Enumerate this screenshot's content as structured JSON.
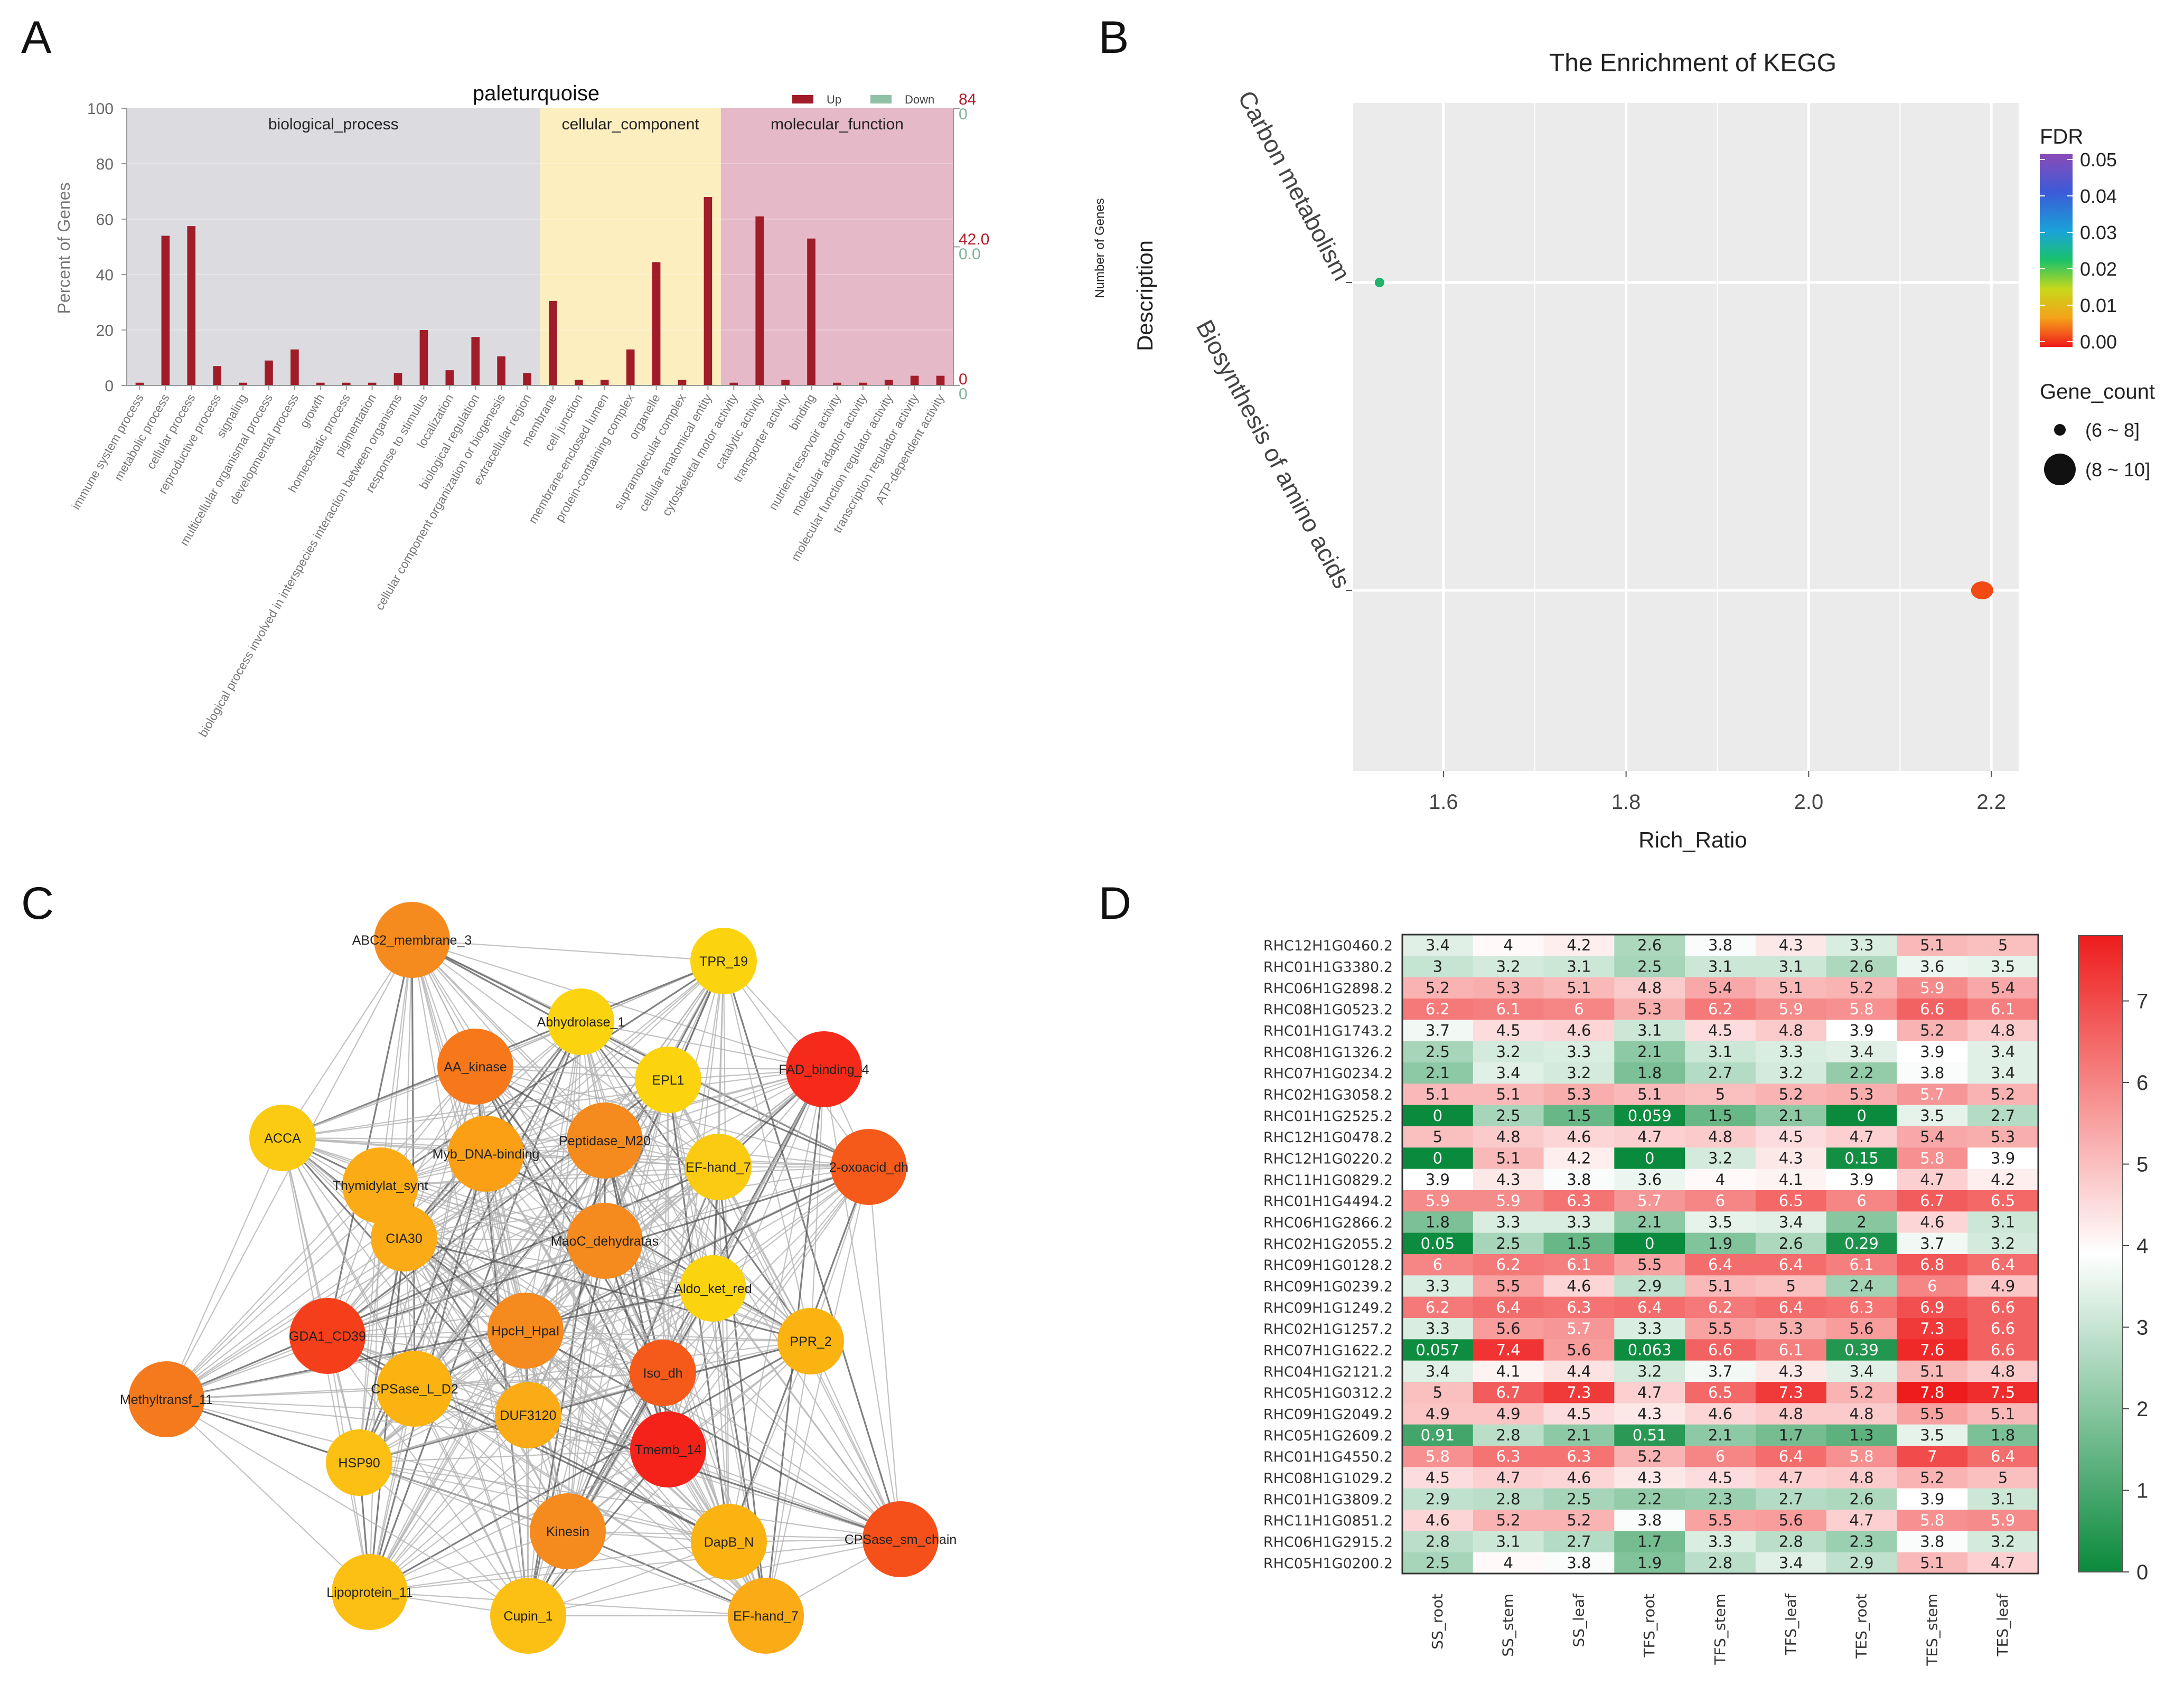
{
  "panels": {
    "a": "A",
    "b": "B",
    "c": "C",
    "d": "D"
  },
  "chart_data": [
    {
      "type": "bar",
      "id": "A",
      "title": "paleturquoise",
      "ylabel": "Percent of Genes",
      "ylim": [
        0,
        100
      ],
      "yticks": [
        "0",
        "20",
        "40",
        "60",
        "80",
        "100"
      ],
      "right_axis": {
        "up": [
          "84",
          "42.0",
          "0"
        ],
        "down": [
          "0",
          "0.0",
          "0"
        ]
      },
      "legend": [
        {
          "name": "Up",
          "color": "#a01c28"
        },
        {
          "name": "Down",
          "color": "#8fbfa5"
        }
      ],
      "groups": [
        {
          "name": "biological_process",
          "start": 0,
          "end": 15,
          "color": "#dcdce0"
        },
        {
          "name": "cellular_component",
          "start": 16,
          "end": 22,
          "color": "#fdeec0"
        },
        {
          "name": "molecular_function",
          "start": 23,
          "end": 31,
          "color": "#e6b9c8"
        }
      ],
      "categories": [
        "immune system process",
        "metabolic process",
        "cellular process",
        "reproductive process",
        "signaling",
        "multicellular organismal process",
        "developmental process",
        "growth",
        "homeostatic process",
        "pigmentation",
        "biological process involved in interspecies interaction between organisms",
        "response to stimulus",
        "localization",
        "biological regulation",
        "cellular component organization or biogenesis",
        "extracellular region",
        "membrane",
        "cell junction",
        "membrane-enclosed lumen",
        "protein-containing complex",
        "organelle",
        "supramolecular complex",
        "cellular anatomical entity",
        "cytoskeletal motor activity",
        "catalytic activity",
        "transporter activity",
        "binding",
        "nutrient reservoir activity",
        "molecular adaptor activity",
        "molecular function regulator activity",
        "transcription regulator activity",
        "ATP-dependent activity"
      ],
      "series": [
        {
          "name": "Up",
          "values": [
            1,
            54,
            57.5,
            7,
            1,
            9,
            13,
            1,
            1,
            1,
            4.5,
            20,
            5.5,
            17.5,
            10.5,
            4.5,
            30.5,
            2,
            2,
            13,
            44.5,
            2,
            68,
            1,
            61,
            2,
            53,
            1,
            1,
            2,
            3.5,
            3.5
          ]
        },
        {
          "name": "Down",
          "values": [
            0,
            0,
            0,
            0,
            0,
            0,
            0,
            0,
            0,
            0,
            0,
            0,
            0,
            0,
            0,
            0,
            0,
            0,
            0,
            0,
            0,
            0,
            0,
            0,
            0,
            0,
            0,
            0,
            0,
            0,
            0,
            0
          ]
        }
      ]
    },
    {
      "type": "scatter",
      "id": "B",
      "title": "The Enrichment of KEGG",
      "xlabel": "Rich_Ratio",
      "ylabel": "Description",
      "ylabel2": "Number of Genes",
      "xlim": [
        1.5,
        2.23
      ],
      "xticks": [
        "1.6",
        "1.8",
        "2.0",
        "2.2"
      ],
      "points": [
        {
          "label": "Carbon metabolism",
          "x": 1.53,
          "fdr": 0.025,
          "color": "#1fb36b",
          "size": "(6 ~ 8]"
        },
        {
          "label": "Biosynthesis of amino acids",
          "x": 2.19,
          "fdr": 0.001,
          "color": "#f24a12",
          "size": "(8 ~ 10]"
        }
      ],
      "colorbar": {
        "title": "FDR",
        "ticks": [
          "0.05",
          "0.04",
          "0.03",
          "0.02",
          "0.01",
          "0.00"
        ]
      },
      "size_legend": {
        "title": "Gene_count",
        "items": [
          "(6 ~ 8]",
          "(8 ~ 10]"
        ]
      }
    },
    {
      "type": "network",
      "id": "C",
      "nodes": [
        {
          "name": "ABC2_membrane_3",
          "color": "#f58a1e"
        },
        {
          "name": "TPR_19",
          "color": "#fbd30f"
        },
        {
          "name": "Abhydrolase_1",
          "color": "#fbd30f"
        },
        {
          "name": "AA_kinase",
          "color": "#f6781a"
        },
        {
          "name": "FAD_binding_4",
          "color": "#f52a1a"
        },
        {
          "name": "EPL1",
          "color": "#fbd30f"
        },
        {
          "name": "ACCA",
          "color": "#fbcb13"
        },
        {
          "name": "Myb_DNA-binding",
          "color": "#fb9f15"
        },
        {
          "name": "Peptidase_M20",
          "color": "#f58a1e"
        },
        {
          "name": "EF-hand_7",
          "color": "#fbcb13"
        },
        {
          "name": "2-oxoacid_dh",
          "color": "#f55a1a"
        },
        {
          "name": "Thymidylat_synt",
          "color": "#fbab15"
        },
        {
          "name": "CIA30",
          "color": "#fbab15"
        },
        {
          "name": "MaoC_dehydratas",
          "color": "#f58a1e"
        },
        {
          "name": "Aldo_ket_red",
          "color": "#fbd30f"
        },
        {
          "name": "GDA1_CD39",
          "color": "#f53e1a"
        },
        {
          "name": "HpcH_HpaI",
          "color": "#f58a1e"
        },
        {
          "name": "PPR_2",
          "color": "#fbb312"
        },
        {
          "name": "Iso_dh",
          "color": "#f55a1a"
        },
        {
          "name": "Methyltransf_11",
          "color": "#f57a1e"
        },
        {
          "name": "CPSase_L_D2",
          "color": "#fbb312"
        },
        {
          "name": "DUF3120",
          "color": "#fbab15"
        },
        {
          "name": "HSP90",
          "color": "#fbc013"
        },
        {
          "name": "Tmemb_14",
          "color": "#f5221a"
        },
        {
          "name": "Kinesin",
          "color": "#f58a1e"
        },
        {
          "name": "DapB_N",
          "color": "#fbb312"
        },
        {
          "name": "CPSase_sm_chain",
          "color": "#f5501a"
        },
        {
          "name": "Lipoprotein_11",
          "color": "#fbc013"
        },
        {
          "name": "Cupin_1",
          "color": "#fbc013"
        },
        {
          "name": "EF-hand_7",
          "color": "#fbab15"
        }
      ]
    },
    {
      "type": "heatmap",
      "id": "D",
      "columns": [
        "SS_root",
        "SS_stem",
        "SS_leaf",
        "TFS_root",
        "TFS_stem",
        "TFS_leaf",
        "TES_root",
        "TES_stem",
        "TES_leaf"
      ],
      "rows": [
        "RHC12H1G0460.2",
        "RHC01H1G3380.2",
        "RHC06H1G2898.2",
        "RHC08H1G0523.2",
        "RHC01H1G1743.2",
        "RHC08H1G1326.2",
        "RHC07H1G0234.2",
        "RHC02H1G3058.2",
        "RHC01H1G2525.2",
        "RHC12H1G0478.2",
        "RHC12H1G0220.2",
        "RHC11H1G0829.2",
        "RHC01H1G4494.2",
        "RHC06H1G2866.2",
        "RHC02H1G2055.2",
        "RHC09H1G0128.2",
        "RHC09H1G0239.2",
        "RHC09H1G1249.2",
        "RHC02H1G1257.2",
        "RHC07H1G1622.2",
        "RHC04H1G2121.2",
        "RHC05H1G0312.2",
        "RHC09H1G2049.2",
        "RHC05H1G2609.2",
        "RHC01H1G4550.2",
        "RHC08H1G1029.2",
        "RHC01H1G3809.2",
        "RHC11H1G0851.2",
        "RHC06H1G2915.2",
        "RHC05H1G0200.2"
      ],
      "values": [
        [
          "3.4",
          "4",
          "4.2",
          "2.6",
          "3.8",
          "4.3",
          "3.3",
          "5.1",
          "5"
        ],
        [
          "3",
          "3.2",
          "3.1",
          "2.5",
          "3.1",
          "3.1",
          "2.6",
          "3.6",
          "3.5"
        ],
        [
          "5.2",
          "5.3",
          "5.1",
          "4.8",
          "5.4",
          "5.1",
          "5.2",
          "5.9",
          "5.4"
        ],
        [
          "6.2",
          "6.1",
          "6",
          "5.3",
          "6.2",
          "5.9",
          "5.8",
          "6.6",
          "6.1"
        ],
        [
          "3.7",
          "4.5",
          "4.6",
          "3.1",
          "4.5",
          "4.8",
          "3.9",
          "5.2",
          "4.8"
        ],
        [
          "2.5",
          "3.2",
          "3.3",
          "2.1",
          "3.1",
          "3.3",
          "3.4",
          "3.9",
          "3.4"
        ],
        [
          "2.1",
          "3.4",
          "3.2",
          "1.8",
          "2.7",
          "3.2",
          "2.2",
          "3.8",
          "3.4"
        ],
        [
          "5.1",
          "5.1",
          "5.3",
          "5.1",
          "5",
          "5.2",
          "5.3",
          "5.7",
          "5.2"
        ],
        [
          "0",
          "2.5",
          "1.5",
          "0.059",
          "1.5",
          "2.1",
          "0",
          "3.5",
          "2.7"
        ],
        [
          "5",
          "4.8",
          "4.6",
          "4.7",
          "4.8",
          "4.5",
          "4.7",
          "5.4",
          "5.3"
        ],
        [
          "0",
          "5.1",
          "4.2",
          "0",
          "3.2",
          "4.3",
          "0.15",
          "5.8",
          "3.9"
        ],
        [
          "3.9",
          "4.3",
          "3.8",
          "3.6",
          "4",
          "4.1",
          "3.9",
          "4.7",
          "4.2"
        ],
        [
          "5.9",
          "5.9",
          "6.3",
          "5.7",
          "6",
          "6.5",
          "6",
          "6.7",
          "6.5"
        ],
        [
          "1.8",
          "3.3",
          "3.3",
          "2.1",
          "3.5",
          "3.4",
          "2",
          "4.6",
          "3.1"
        ],
        [
          "0.05",
          "2.5",
          "1.5",
          "0",
          "1.9",
          "2.6",
          "0.29",
          "3.7",
          "3.2"
        ],
        [
          "6",
          "6.2",
          "6.1",
          "5.5",
          "6.4",
          "6.4",
          "6.1",
          "6.8",
          "6.4"
        ],
        [
          "3.3",
          "5.5",
          "4.6",
          "2.9",
          "5.1",
          "5",
          "2.4",
          "6",
          "4.9"
        ],
        [
          "6.2",
          "6.4",
          "6.3",
          "6.4",
          "6.2",
          "6.4",
          "6.3",
          "6.9",
          "6.6"
        ],
        [
          "3.3",
          "5.6",
          "5.7",
          "3.3",
          "5.5",
          "5.3",
          "5.6",
          "7.3",
          "6.6"
        ],
        [
          "0.057",
          "7.4",
          "5.6",
          "0.063",
          "6.6",
          "6.1",
          "0.39",
          "7.6",
          "6.6"
        ],
        [
          "3.4",
          "4.1",
          "4.4",
          "3.2",
          "3.7",
          "4.3",
          "3.4",
          "5.1",
          "4.8"
        ],
        [
          "5",
          "6.7",
          "7.3",
          "4.7",
          "6.5",
          "7.3",
          "5.2",
          "7.8",
          "7.5"
        ],
        [
          "4.9",
          "4.9",
          "4.5",
          "4.3",
          "4.6",
          "4.8",
          "4.8",
          "5.5",
          "5.1"
        ],
        [
          "0.91",
          "2.8",
          "2.1",
          "0.51",
          "2.1",
          "1.7",
          "1.3",
          "3.5",
          "1.8"
        ],
        [
          "5.8",
          "6.3",
          "6.3",
          "5.2",
          "6",
          "6.4",
          "5.8",
          "7",
          "6.4"
        ],
        [
          "4.5",
          "4.7",
          "4.6",
          "4.3",
          "4.5",
          "4.7",
          "4.8",
          "5.2",
          "5"
        ],
        [
          "2.9",
          "2.8",
          "2.5",
          "2.2",
          "2.3",
          "2.7",
          "2.6",
          "3.9",
          "3.1"
        ],
        [
          "4.6",
          "5.2",
          "5.2",
          "3.8",
          "5.5",
          "5.6",
          "4.7",
          "5.8",
          "5.9"
        ],
        [
          "2.8",
          "3.1",
          "2.7",
          "1.7",
          "3.3",
          "2.8",
          "2.3",
          "3.8",
          "3.2"
        ],
        [
          "2.5",
          "4",
          "3.8",
          "1.9",
          "2.8",
          "3.4",
          "2.9",
          "5.1",
          "4.7"
        ]
      ],
      "scale_min": 0,
      "scale_max": 7.8,
      "colorbar_ticks": [
        "0",
        "1",
        "2",
        "3",
        "4",
        "5",
        "6",
        "7"
      ]
    }
  ]
}
